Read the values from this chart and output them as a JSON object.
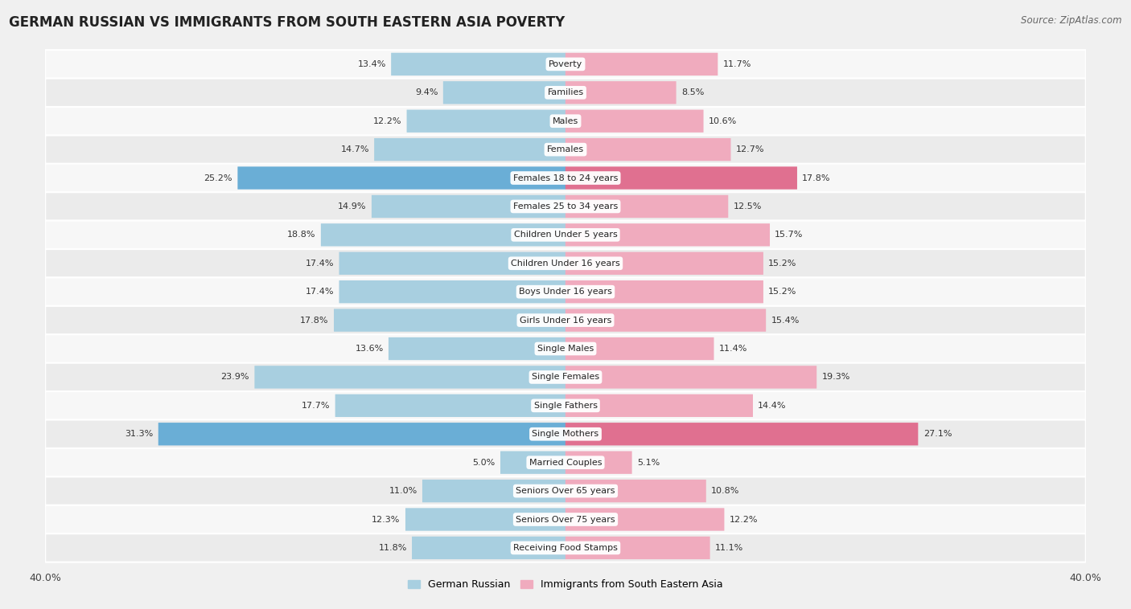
{
  "title": "GERMAN RUSSIAN VS IMMIGRANTS FROM SOUTH EASTERN ASIA POVERTY",
  "source": "Source: ZipAtlas.com",
  "categories": [
    "Poverty",
    "Families",
    "Males",
    "Females",
    "Females 18 to 24 years",
    "Females 25 to 34 years",
    "Children Under 5 years",
    "Children Under 16 years",
    "Boys Under 16 years",
    "Girls Under 16 years",
    "Single Males",
    "Single Females",
    "Single Fathers",
    "Single Mothers",
    "Married Couples",
    "Seniors Over 65 years",
    "Seniors Over 75 years",
    "Receiving Food Stamps"
  ],
  "german_russian": [
    13.4,
    9.4,
    12.2,
    14.7,
    25.2,
    14.9,
    18.8,
    17.4,
    17.4,
    17.8,
    13.6,
    23.9,
    17.7,
    31.3,
    5.0,
    11.0,
    12.3,
    11.8
  ],
  "immigrants_sea": [
    11.7,
    8.5,
    10.6,
    12.7,
    17.8,
    12.5,
    15.7,
    15.2,
    15.2,
    15.4,
    11.4,
    19.3,
    14.4,
    27.1,
    5.1,
    10.8,
    12.2,
    11.1
  ],
  "color_left": "#a8cfe0",
  "color_right": "#f0abbe",
  "color_highlight_left": "#6aaed6",
  "color_highlight_right": "#e07090",
  "highlight_rows": [
    4,
    13
  ],
  "axis_max": 40.0,
  "bg_light": "#f0f0f0",
  "bg_dark": "#e0e0e0",
  "row_bg_light": "#f7f7f7",
  "row_bg_dark": "#ebebeb",
  "legend_label_left": "German Russian",
  "legend_label_right": "Immigrants from South Eastern Asia"
}
